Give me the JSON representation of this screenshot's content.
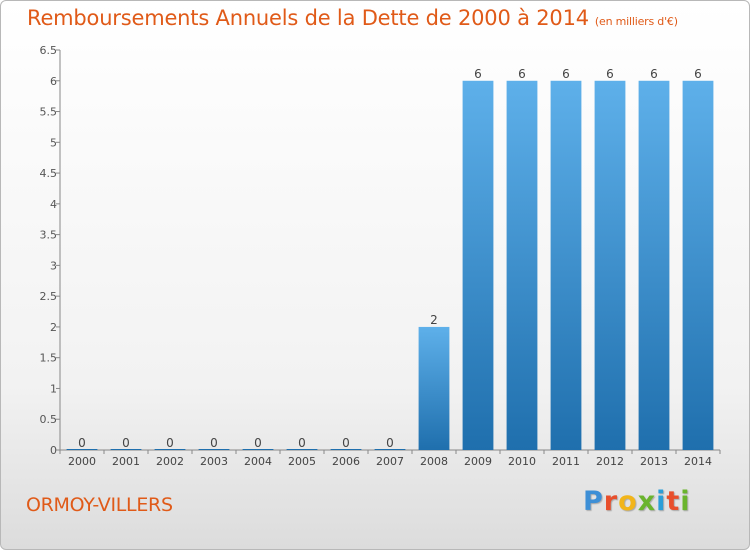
{
  "title": "Remboursements Annuels de la Dette de 2000 à 2014",
  "subtitle": "(en milliers d'€)",
  "commune": "ORMOY-VILLERS",
  "logo": {
    "letters": [
      "P",
      "r",
      "o",
      "x",
      "i",
      "t",
      "i"
    ],
    "colors": [
      "#3d8fd6",
      "#e84f2c",
      "#f2b51a",
      "#6ab42d",
      "#2b9ed8",
      "#e84f2c",
      "#6ab42d"
    ]
  },
  "colors": {
    "bar_light": "#5eb0ea",
    "bar_dark": "#1f6fad",
    "title": "#e05a18",
    "axis": "#888888"
  },
  "chart_data": {
    "type": "bar",
    "categories": [
      "2000",
      "2001",
      "2002",
      "2003",
      "2004",
      "2005",
      "2006",
      "2007",
      "2008",
      "2009",
      "2010",
      "2011",
      "2012",
      "2013",
      "2014"
    ],
    "values": [
      0,
      0,
      0,
      0,
      0,
      0,
      0,
      0,
      2,
      6,
      6,
      6,
      6,
      6,
      6
    ],
    "data_labels": [
      "0",
      "0",
      "0",
      "0",
      "0",
      "0",
      "0",
      "0",
      "2",
      "6",
      "6",
      "6",
      "6",
      "6",
      "6"
    ],
    "yticks": [
      "0",
      "0.5",
      "1",
      "1.5",
      "2",
      "2.5",
      "3",
      "3.5",
      "4",
      "4.5",
      "5",
      "5.5",
      "6",
      "6.5"
    ],
    "ylim": [
      0,
      6.5
    ],
    "grid": false,
    "legend": "none"
  }
}
